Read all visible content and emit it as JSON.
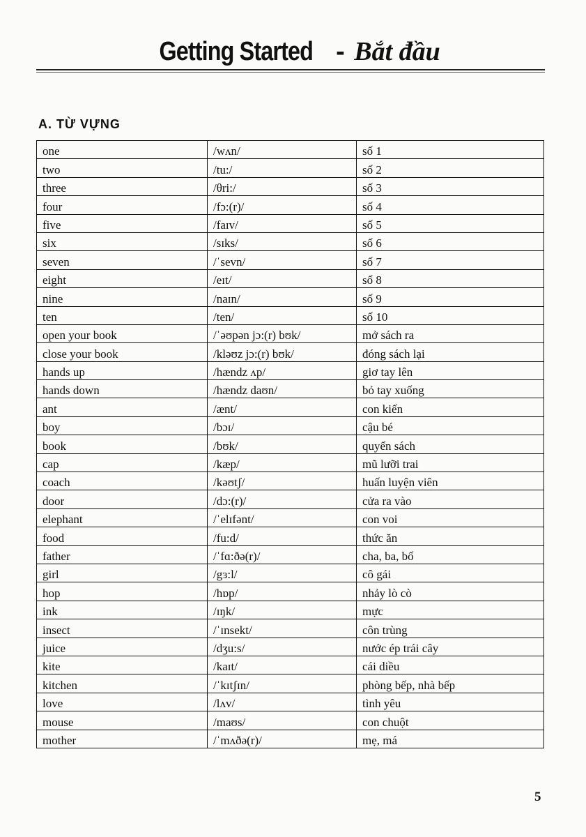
{
  "title": {
    "english": "Getting Started",
    "separator": "-",
    "vietnamese": "Bắt đầu"
  },
  "section_heading": "A. TỪ VỰNG",
  "vocabulary": [
    [
      "one",
      "/wʌn/",
      "số 1"
    ],
    [
      "two",
      "/tu:/",
      "số 2"
    ],
    [
      "three",
      "/θri:/",
      "số 3"
    ],
    [
      "four",
      "/fɔ:(r)/",
      "số 4"
    ],
    [
      "five",
      "/faɪv/",
      "số 5"
    ],
    [
      "six",
      "/sɪks/",
      "số 6"
    ],
    [
      "seven",
      "/ˈsevn/",
      "số 7"
    ],
    [
      "eight",
      "/eɪt/",
      "số 8"
    ],
    [
      "nine",
      "/naɪn/",
      "số 9"
    ],
    [
      "ten",
      "/ten/",
      "số 10"
    ],
    [
      "open your book",
      "/ˈəʊpən jɔ:(r) bʊk/",
      "mở sách ra"
    ],
    [
      "close your book",
      "/kləʊz jɔ:(r) bʊk/",
      "đóng sách lại"
    ],
    [
      "hands up",
      "/hændz ʌp/",
      "giơ tay lên"
    ],
    [
      "hands down",
      "/hændz daʊn/",
      "bỏ tay xuống"
    ],
    [
      "ant",
      "/ænt/",
      "con kiến"
    ],
    [
      "boy",
      "/bɔɪ/",
      "cậu bé"
    ],
    [
      "book",
      "/bʊk/",
      "quyển sách"
    ],
    [
      "cap",
      "/kæp/",
      "mũ lưỡi trai"
    ],
    [
      "coach",
      "/kəʊtʃ/",
      "huấn luyện viên"
    ],
    [
      "door",
      "/dɔ:(r)/",
      "cửa ra vào"
    ],
    [
      "elephant",
      "/ˈelɪfənt/",
      "con voi"
    ],
    [
      "food",
      "/fu:d/",
      "thức ăn"
    ],
    [
      "father",
      "/ˈfɑ:ðə(r)/",
      "cha, ba, bố"
    ],
    [
      "girl",
      "/gɜ:l/",
      "cô gái"
    ],
    [
      "hop",
      "/hɒp/",
      "nhảy lò cò"
    ],
    [
      "ink",
      "/ɪŋk/",
      "mực"
    ],
    [
      "insect",
      "/ˈɪnsekt/",
      "côn trùng"
    ],
    [
      "juice",
      "/dʒu:s/",
      "nước ép trái cây"
    ],
    [
      "kite",
      "/kaɪt/",
      "cái diều"
    ],
    [
      "kitchen",
      "/ˈkɪtʃɪn/",
      "phòng bếp, nhà bếp"
    ],
    [
      "love",
      "/lʌv/",
      "tình yêu"
    ],
    [
      "mouse",
      "/maʊs/",
      "con chuột"
    ],
    [
      "mother",
      "/ˈmʌðə(r)/",
      "mẹ, má"
    ]
  ],
  "page_number": "5"
}
